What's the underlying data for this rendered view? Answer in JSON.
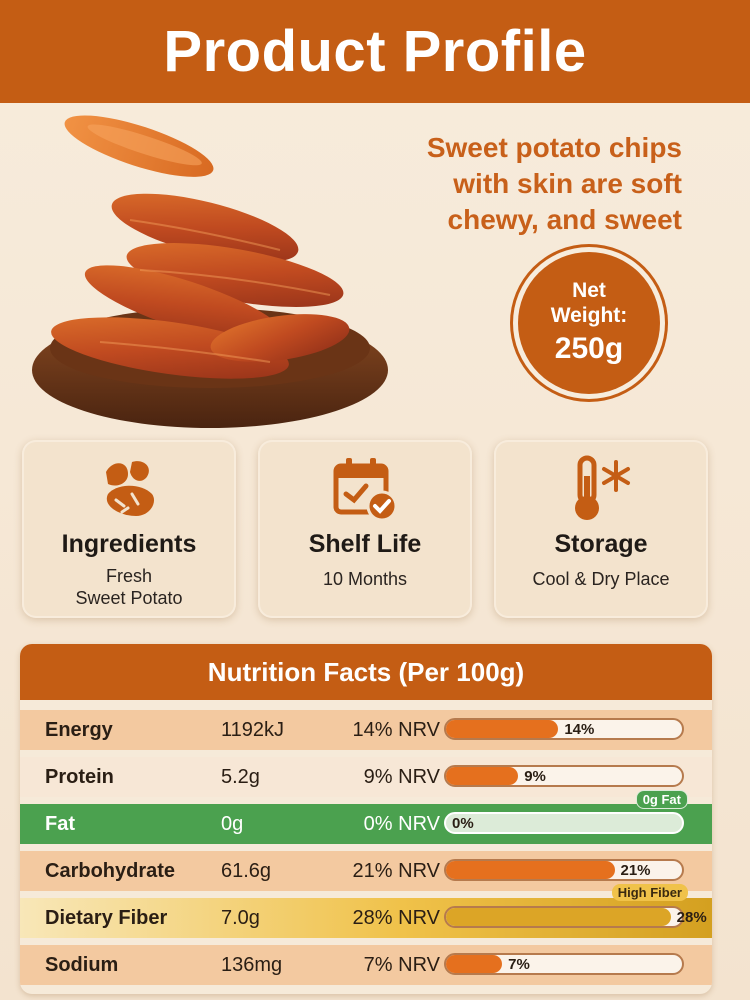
{
  "title": "Product Profile",
  "tagline": [
    "Sweet potato chips",
    "with skin are soft",
    "chewy, and sweet"
  ],
  "net_weight": {
    "label_line1": "Net",
    "label_line2": "Weight:",
    "value": "250g"
  },
  "features": [
    {
      "title": "Ingredients",
      "sub1": "Fresh",
      "sub2": "Sweet Potato",
      "icon": "sweet-potato-icon"
    },
    {
      "title": "Shelf Life",
      "sub1": "10 Months",
      "sub2": "",
      "icon": "calendar-check-icon"
    },
    {
      "title": "Storage",
      "sub1": "Cool & Dry Place",
      "sub2": "",
      "icon": "thermometer-snowflake-icon"
    }
  ],
  "nutrition": {
    "header": "Nutrition Facts (Per 100g)",
    "rows": [
      {
        "name": "Energy",
        "amount": "1192kJ",
        "nrv": "14% NRV",
        "bar_label": "14%",
        "percent": 14
      },
      {
        "name": "Protein",
        "amount": "5.2g",
        "nrv": "9% NRV",
        "bar_label": "9%",
        "percent": 9
      },
      {
        "name": "Fat",
        "amount": "0g",
        "nrv": "0% NRV",
        "bar_label": "0%",
        "percent": 0,
        "badge": "0g Fat"
      },
      {
        "name": "Carbohydrate",
        "amount": "61.6g",
        "nrv": "21% NRV",
        "bar_label": "21%",
        "percent": 21
      },
      {
        "name": "Dietary Fiber",
        "amount": "7.0g",
        "nrv": "28% NRV",
        "bar_label": "28%",
        "percent": 28,
        "badge": "High Fiber"
      },
      {
        "name": "Sodium",
        "amount": "136mg",
        "nrv": "7% NRV",
        "bar_label": "7%",
        "percent": 7
      }
    ]
  },
  "colors": {
    "brand": "#c45d14",
    "fat_row": "#4ba14f",
    "fiber_row": "#f0c24a"
  }
}
